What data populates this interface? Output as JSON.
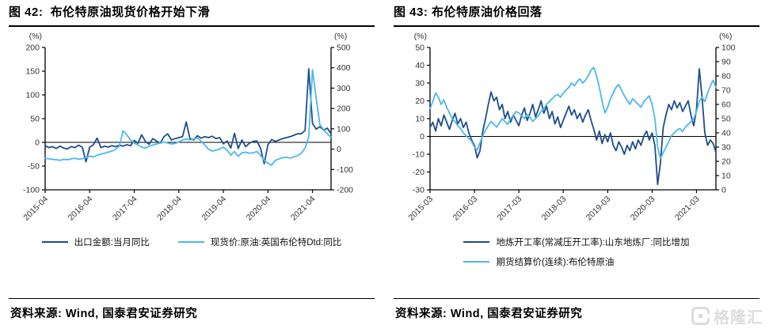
{
  "watermark": {
    "text": "格隆汇",
    "icon": "gelonghui-g-logo",
    "color": "#DCDCDC"
  },
  "footer_left": {
    "text": "资料来源: Wind, 国泰君安证券研究"
  },
  "footer_right": {
    "text": "资料来源: Wind, 国泰君安证券研究"
  },
  "chart_data": [
    {
      "type": "line",
      "title": "图 42:  布伦特原油现货价格开始下滑",
      "left_axis": {
        "unit": "(%)",
        "min": -100,
        "max": 200,
        "step": 50
      },
      "right_axis": {
        "unit": "(%)",
        "min": -200,
        "max": 500,
        "step": 100
      },
      "x_ticks": [
        {
          "index": 0,
          "label": "2015-04"
        },
        {
          "index": 12,
          "label": "2016-04"
        },
        {
          "index": 24,
          "label": "2017-04"
        },
        {
          "index": 36,
          "label": "2018-04"
        },
        {
          "index": 48,
          "label": "2019-04"
        },
        {
          "index": 60,
          "label": "2020-04"
        },
        {
          "index": 72,
          "label": "2021-04"
        }
      ],
      "grid": false,
      "legend_position": "bottom",
      "series": [
        {
          "name": "出口金额:当月同比",
          "axis": "left",
          "color": "#1F4E8C",
          "values": [
            -7,
            -11,
            -9,
            -13,
            -8,
            -12,
            -14,
            -9,
            -11,
            -6,
            -10,
            -41,
            -10,
            -5,
            9,
            -11,
            -8,
            -10,
            -7,
            -9,
            -6,
            -8,
            -5,
            -7,
            4,
            -2,
            16,
            2,
            -4,
            8,
            3,
            -2,
            12,
            18,
            5,
            8,
            10,
            12,
            43,
            8,
            5,
            14,
            9,
            12,
            10,
            13,
            8,
            10,
            -3,
            3,
            -12,
            19,
            -13,
            5,
            -9,
            -2,
            2,
            3,
            -12,
            -45,
            -5,
            6,
            2,
            5,
            8,
            10,
            12,
            15,
            18,
            18,
            25,
            155,
            40,
            28,
            33,
            26,
            30,
            18
          ]
        },
        {
          "name": "现货价:原油:英国布伦特Dtd:同比",
          "axis": "right",
          "color": "#4DB8EB",
          "values": [
            -45,
            -48,
            -50,
            -52,
            -55,
            -50,
            -52,
            -48,
            -45,
            -50,
            -47,
            -42,
            -35,
            -38,
            -30,
            -25,
            -20,
            -15,
            -10,
            0,
            15,
            90,
            70,
            45,
            30,
            20,
            10,
            5,
            15,
            20,
            25,
            30,
            35,
            30,
            25,
            28,
            35,
            45,
            50,
            45,
            50,
            55,
            40,
            20,
            0,
            -10,
            -5,
            0,
            10,
            -5,
            -30,
            -12,
            -35,
            -18,
            -15,
            -20,
            -18,
            -12,
            -30,
            -55,
            -70,
            -78,
            -55,
            -48,
            -42,
            -40,
            -44,
            -38,
            -32,
            -20,
            5,
            60,
            390,
            250,
            120,
            95,
            75,
            58
          ]
        }
      ]
    },
    {
      "type": "line",
      "title": "图 43: 布伦特原油价格回落",
      "left_axis": {
        "unit": "(%)",
        "min": -30,
        "max": 50,
        "step": 10
      },
      "right_axis": {
        "unit": "(%)",
        "min": 0,
        "max": 100,
        "step": 10
      },
      "x_ticks": [
        {
          "index": 0,
          "label": "2015-03"
        },
        {
          "index": 16,
          "label": "2016-03"
        },
        {
          "index": 32,
          "label": "2017-03"
        },
        {
          "index": 48,
          "label": "2018-03"
        },
        {
          "index": 64,
          "label": "2019-03"
        },
        {
          "index": 80,
          "label": "2020-03"
        },
        {
          "index": 96,
          "label": "2021-03"
        }
      ],
      "grid": false,
      "legend_position": "bottom",
      "series": [
        {
          "name": "地炼开工率(常减压开工率):山东地炼厂:同比增加",
          "axis": "left",
          "color": "#1F4E8C",
          "values": [
            5,
            8,
            3,
            10,
            6,
            12,
            8,
            4,
            9,
            13,
            7,
            10,
            5,
            8,
            2,
            -2,
            -5,
            -12,
            -8,
            3,
            10,
            18,
            25,
            20,
            22,
            15,
            18,
            10,
            14,
            8,
            12,
            9,
            6,
            12,
            16,
            9,
            13,
            18,
            11,
            15,
            20,
            13,
            17,
            10,
            14,
            7,
            11,
            5,
            9,
            13,
            17,
            12,
            15,
            10,
            13,
            8,
            12,
            15,
            9,
            4,
            -2,
            3,
            -4,
            1,
            -3,
            2,
            -5,
            -8,
            -3,
            -6,
            -10,
            -5,
            -8,
            -3,
            -7,
            -2,
            -5,
            0,
            3,
            -2,
            2,
            -5,
            -27,
            -15,
            5,
            12,
            18,
            15,
            20,
            16,
            19,
            14,
            17,
            20,
            12,
            6,
            15,
            38,
            22,
            2,
            -5,
            -2,
            -4,
            -9
          ]
        },
        {
          "name": "期货结算价(连续):布伦特原油",
          "axis": "right",
          "color": "#4DB8EB",
          "values": [
            57,
            62,
            68,
            65,
            60,
            63,
            58,
            54,
            50,
            48,
            45,
            43,
            40,
            38,
            36,
            34,
            30,
            28,
            33,
            38,
            42,
            45,
            48,
            46,
            44,
            47,
            50,
            48,
            46,
            50,
            52,
            55,
            54,
            52,
            50,
            53,
            51,
            48,
            50,
            52,
            55,
            57,
            60,
            62,
            64,
            66,
            67,
            65,
            68,
            70,
            72,
            75,
            73,
            76,
            78,
            75,
            77,
            80,
            84,
            86,
            80,
            72,
            62,
            54,
            58,
            64,
            68,
            72,
            74,
            70,
            66,
            63,
            60,
            64,
            62,
            60,
            58,
            62,
            64,
            66,
            60,
            50,
            30,
            22,
            26,
            30,
            34,
            38,
            40,
            42,
            43,
            41,
            44,
            46,
            48,
            50,
            55,
            62,
            65,
            62,
            68,
            73,
            77,
            72
          ]
        }
      ]
    }
  ]
}
